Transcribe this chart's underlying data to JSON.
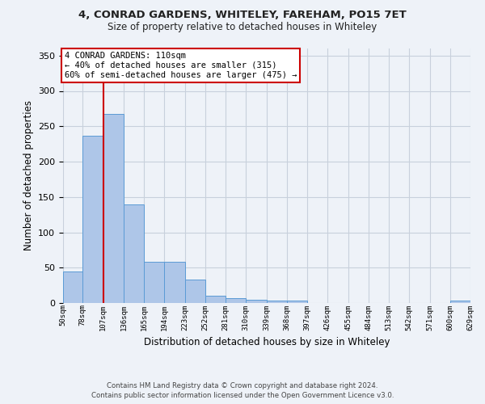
{
  "title1": "4, CONRAD GARDENS, WHITELEY, FAREHAM, PO15 7ET",
  "title2": "Size of property relative to detached houses in Whiteley",
  "xlabel": "Distribution of detached houses by size in Whiteley",
  "ylabel": "Number of detached properties",
  "footer1": "Contains HM Land Registry data © Crown copyright and database right 2024.",
  "footer2": "Contains public sector information licensed under the Open Government Licence v3.0.",
  "annotation_line1": "4 CONRAD GARDENS: 110sqm",
  "annotation_line2": "← 40% of detached houses are smaller (315)",
  "annotation_line3": "60% of semi-detached houses are larger (475) →",
  "bin_edges": [
    50,
    78,
    107,
    136,
    165,
    194,
    223,
    252,
    281,
    310,
    339,
    368,
    397,
    426,
    455,
    484,
    513,
    542,
    571,
    600,
    629
  ],
  "bar_values": [
    45,
    237,
    268,
    139,
    58,
    58,
    33,
    10,
    7,
    5,
    4,
    4,
    0,
    0,
    0,
    0,
    0,
    0,
    0,
    4
  ],
  "bar_color": "#aec6e8",
  "bar_edge_color": "#5b9bd5",
  "vline_color": "#cc0000",
  "vline_x": 107,
  "annotation_box_color": "#cc0000",
  "background_color": "#eef2f8",
  "grid_color": "#c8d0dc",
  "ylim": [
    0,
    360
  ],
  "yticks": [
    0,
    50,
    100,
    150,
    200,
    250,
    300,
    350
  ]
}
